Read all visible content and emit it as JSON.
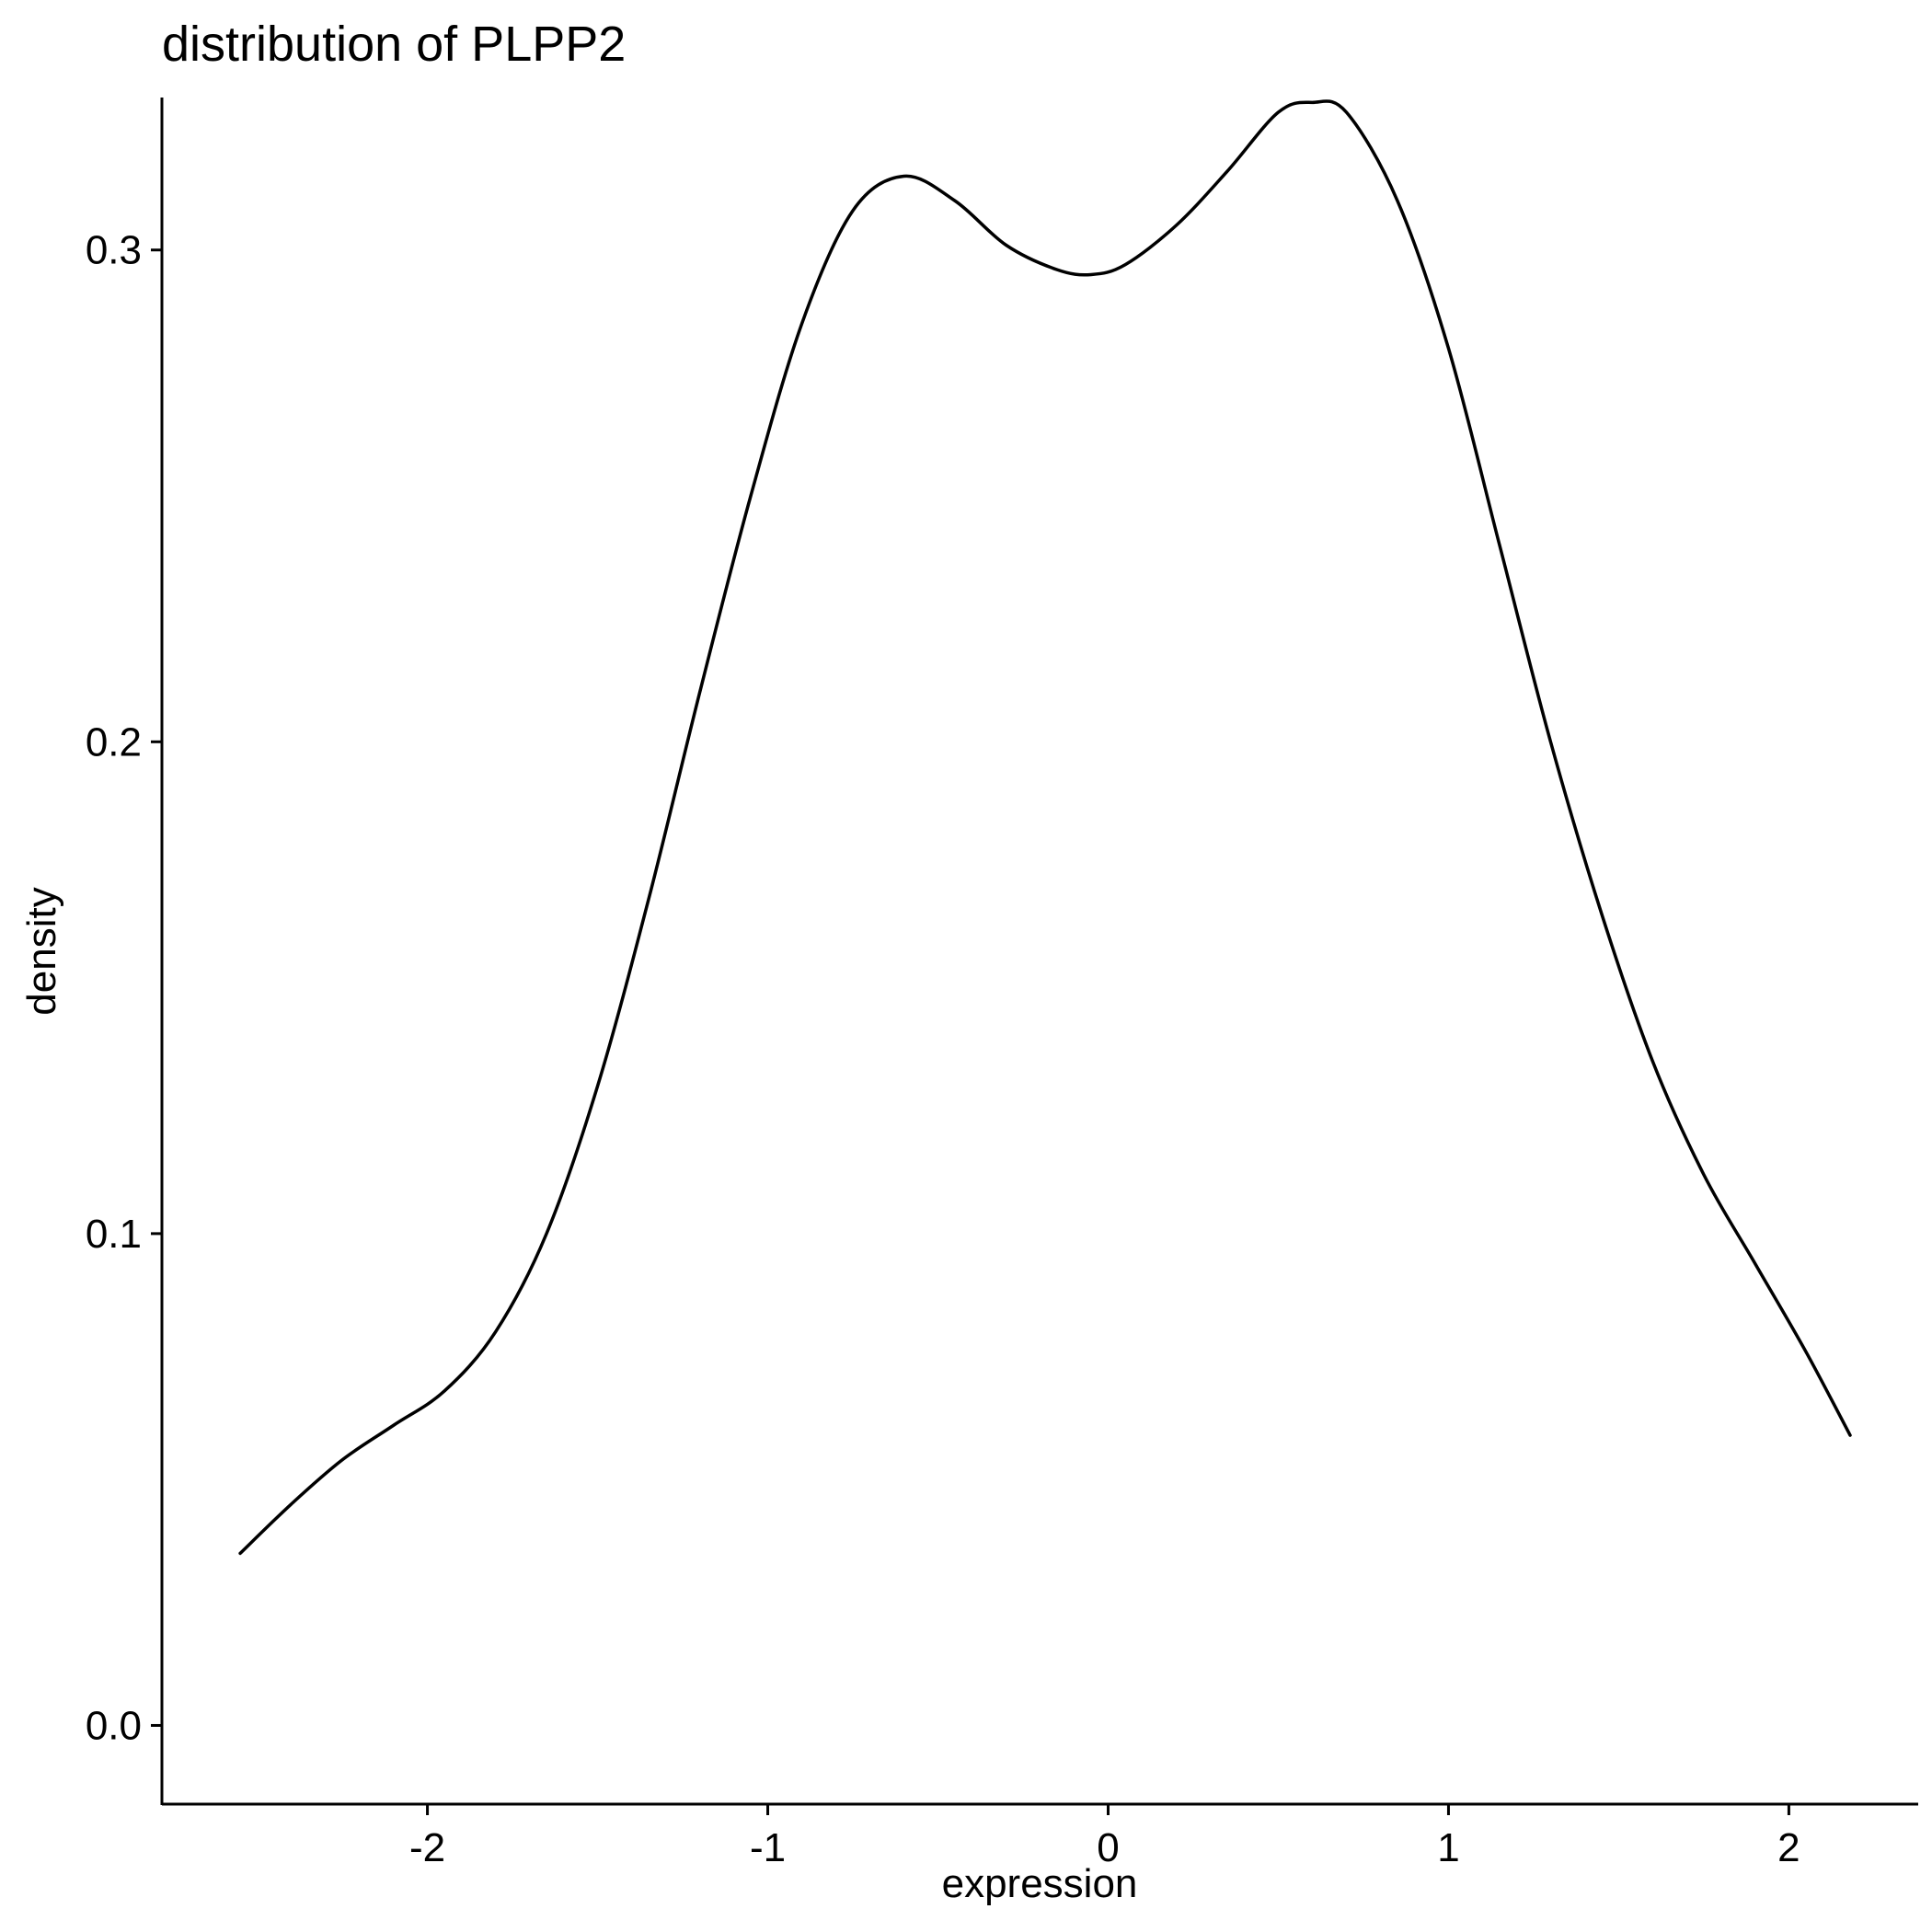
{
  "chart_data": {
    "type": "line",
    "title": "distribution of PLPP2",
    "xlabel": "expression",
    "ylabel": "density",
    "xlim": [
      -2.78,
      2.38
    ],
    "ylim": [
      -0.016,
      0.331
    ],
    "x_ticks": [
      -2,
      -1,
      0,
      1,
      2
    ],
    "x_tick_labels": [
      "-2",
      "-1",
      "0",
      "1",
      "2"
    ],
    "y_ticks": [
      0.0,
      0.1,
      0.2,
      0.3
    ],
    "y_tick_labels": [
      "0.0",
      "0.1",
      "0.2",
      "0.3"
    ],
    "grid": false,
    "line_color": "#000000",
    "series": [
      {
        "x": [
          -2.55,
          -2.4,
          -2.25,
          -2.1,
          -1.95,
          -1.8,
          -1.65,
          -1.5,
          -1.35,
          -1.2,
          -1.05,
          -0.9,
          -0.75,
          -0.6,
          -0.45,
          -0.3,
          -0.15,
          -0.05,
          0.05,
          0.2,
          0.35,
          0.5,
          0.6,
          0.7,
          0.85,
          1.0,
          1.15,
          1.3,
          1.45,
          1.6,
          1.75,
          1.9,
          2.05,
          2.18
        ],
        "y": [
          0.035,
          0.045,
          0.054,
          0.061,
          0.068,
          0.08,
          0.1,
          0.13,
          0.168,
          0.21,
          0.25,
          0.285,
          0.308,
          0.315,
          0.31,
          0.301,
          0.296,
          0.295,
          0.297,
          0.305,
          0.316,
          0.328,
          0.33,
          0.328,
          0.31,
          0.28,
          0.24,
          0.2,
          0.165,
          0.135,
          0.112,
          0.094,
          0.076,
          0.059
        ]
      }
    ]
  }
}
